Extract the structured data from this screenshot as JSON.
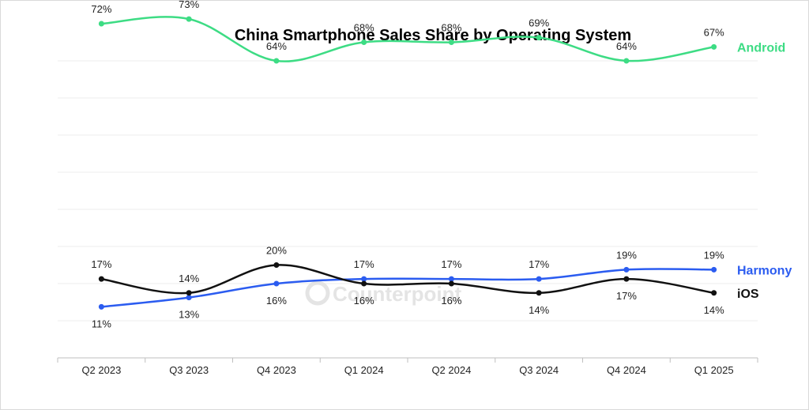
{
  "chart_data": {
    "type": "line",
    "title": "China Smartphone Sales Share by Operating System",
    "categories": [
      "Q2 2023",
      "Q3 2023",
      "Q4 2023",
      "Q1 2024",
      "Q2 2024",
      "Q3 2024",
      "Q4 2024",
      "Q1 2025"
    ],
    "series": [
      {
        "name": "Android",
        "color": "#3ddc84",
        "values": [
          72,
          73,
          64,
          68,
          68,
          69,
          64,
          67
        ],
        "labels": [
          "72%",
          "73%",
          "64%",
          "68%",
          "68%",
          "69%",
          "64%",
          "67%"
        ]
      },
      {
        "name": "Harmony",
        "color": "#2b5cf0",
        "values": [
          11,
          13,
          16,
          17,
          17,
          17,
          19,
          19
        ],
        "labels": [
          "11%",
          "13%",
          "16%",
          "17%",
          "17%",
          "17%",
          "19%",
          "19%"
        ]
      },
      {
        "name": "iOS",
        "color": "#111111",
        "values": [
          17,
          14,
          20,
          16,
          16,
          14,
          17,
          14
        ],
        "labels": [
          "17%",
          "14%",
          "20%",
          "16%",
          "16%",
          "14%",
          "17%",
          "14%"
        ]
      }
    ],
    "ylim": [
      0,
      80
    ],
    "grid": true,
    "legend": "right, at line ends",
    "watermark": "Counterpoint"
  }
}
